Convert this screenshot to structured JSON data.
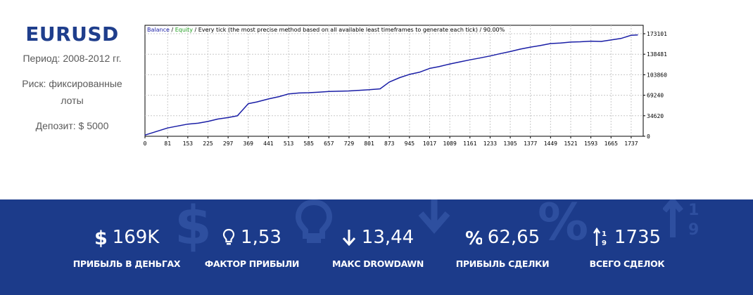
{
  "sidebar": {
    "symbol": "EURUSD",
    "period": "Период: 2008-2012 гг.",
    "risk": "Риск: фиксированные лоты",
    "deposit": "Депозит: $ 5000"
  },
  "chart_data": {
    "type": "line",
    "legend_balance": "Balance",
    "legend_sep1": " / ",
    "legend_equity": "Equity",
    "legend_rest": " / Every tick (the most precise method based on all available least timeframes to generate each tick) / 90.00%",
    "x_ticks": [
      "0",
      "81",
      "153",
      "225",
      "297",
      "369",
      "441",
      "513",
      "585",
      "657",
      "729",
      "801",
      "873",
      "945",
      "1017",
      "1089",
      "1161",
      "1233",
      "1305",
      "1377",
      "1449",
      "1521",
      "1593",
      "1665",
      "1737"
    ],
    "y_ticks": [
      "173101",
      "138481",
      "103860",
      "69240",
      "34620",
      "0"
    ],
    "xlim": [
      0,
      1780
    ],
    "ylim": [
      0,
      173101
    ],
    "grid": true,
    "series": [
      {
        "name": "Balance",
        "color": "#1a1ea6",
        "x": [
          0,
          40,
          81,
          120,
          153,
          190,
          225,
          260,
          297,
          330,
          369,
          400,
          441,
          480,
          513,
          550,
          585,
          620,
          657,
          690,
          729,
          765,
          801,
          840,
          873,
          910,
          945,
          980,
          1017,
          1050,
          1089,
          1125,
          1161,
          1195,
          1233,
          1270,
          1305,
          1340,
          1377,
          1410,
          1449,
          1485,
          1521,
          1555,
          1593,
          1630,
          1665,
          1700,
          1737,
          1760
        ],
        "y": [
          2000,
          8000,
          14000,
          17500,
          20500,
          22000,
          25000,
          29000,
          31500,
          34500,
          55000,
          58000,
          63000,
          67000,
          71500,
          73000,
          73500,
          74500,
          75500,
          76000,
          76500,
          77500,
          78500,
          80000,
          91500,
          99000,
          104500,
          108000,
          114500,
          117500,
          122000,
          125500,
          129000,
          132000,
          135500,
          139500,
          143000,
          147000,
          150500,
          153000,
          156500,
          157500,
          159000,
          159500,
          160500,
          160000,
          162500,
          165000,
          170500,
          171000
        ]
      }
    ]
  },
  "stats": [
    {
      "icon": "dollar",
      "value": "169K",
      "label": "ПРИБЫЛЬ В ДЕНЬГАХ"
    },
    {
      "icon": "lightbulb",
      "value": "1,53",
      "label": "ФАКТОР ПРИБЫЛИ"
    },
    {
      "icon": "arrow-down",
      "value": "13,44",
      "label": "МАКС DROWDAWN"
    },
    {
      "icon": "percent",
      "value": "62,65",
      "label": "ПРИБЫЛЬ СДЕЛКИ"
    },
    {
      "icon": "sort-numeric",
      "value": "1735",
      "label": "ВСЕГО СДЕЛОК"
    }
  ]
}
